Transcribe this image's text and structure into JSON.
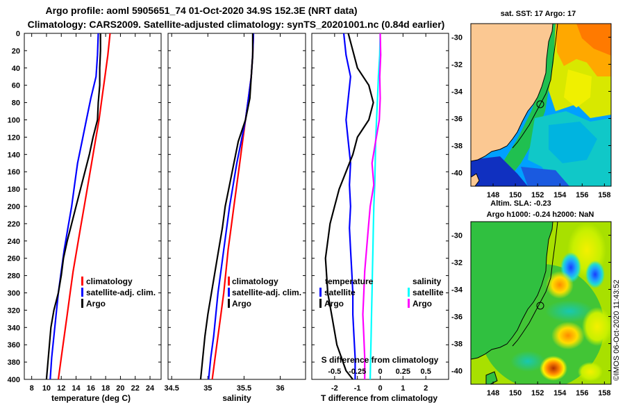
{
  "header": {
    "line1": "Argo profile: aoml 5905651_74 01-Oct-2020 34.9S 152.3E (NRT data)",
    "line2": "Climatology: CARS2009. Satellite-adjusted climatology: synTS_20201001.nc (0.84d earlier)"
  },
  "colors": {
    "red": "#ff0000",
    "blue": "#0000ff",
    "black": "#000000",
    "cyan": "#00ffff",
    "magenta": "#ff00ff"
  },
  "chart_data": [
    {
      "type": "line",
      "id": "temperature",
      "xlabel": "temperature (deg C)",
      "ylabel": "",
      "xlim": [
        7,
        25.5
      ],
      "ylim": [
        400,
        0
      ],
      "xticks": [
        8,
        10,
        12,
        14,
        16,
        18,
        20,
        22,
        24
      ],
      "yticks": [
        0,
        20,
        40,
        60,
        80,
        100,
        120,
        140,
        160,
        180,
        200,
        220,
        240,
        260,
        280,
        300,
        320,
        340,
        360,
        380,
        400
      ],
      "legend": [
        "climatology",
        "satellite-adj. clim.",
        "Argo"
      ],
      "series": [
        {
          "name": "climatology",
          "color": "#ff0000",
          "x": [
            18.6,
            18.3,
            17.9,
            17.5,
            17.1,
            16.6,
            16.1,
            15.6,
            15.1,
            14.6,
            14.1,
            13.6,
            13.2,
            12.8,
            12.4,
            12.0,
            11.6
          ],
          "y": [
            0,
            25,
            50,
            75,
            100,
            125,
            150,
            175,
            200,
            225,
            250,
            275,
            300,
            325,
            350,
            375,
            400
          ]
        },
        {
          "name": "satellite-adj. clim.",
          "color": "#0000ff",
          "x": [
            17.0,
            16.9,
            16.7,
            16.0,
            15.4,
            14.8,
            14.2,
            13.8,
            13.4,
            12.9,
            12.4,
            12.0,
            11.6,
            11.3,
            11.0,
            10.7,
            10.5
          ],
          "y": [
            0,
            25,
            50,
            75,
            100,
            125,
            150,
            175,
            200,
            225,
            250,
            275,
            300,
            325,
            350,
            375,
            400
          ]
        },
        {
          "name": "Argo",
          "color": "#000000",
          "x": [
            17.3,
            17.3,
            17.2,
            17.2,
            17.0,
            16.9,
            16.3,
            15.8,
            15.2,
            14.6,
            14.0,
            13.4,
            12.8,
            12.3,
            12.0,
            11.6,
            11.0,
            10.6,
            10.3,
            10.0
          ],
          "y": [
            0,
            20,
            40,
            60,
            80,
            100,
            120,
            140,
            160,
            180,
            200,
            220,
            240,
            260,
            280,
            300,
            320,
            340,
            370,
            400
          ]
        }
      ]
    },
    {
      "type": "line",
      "id": "salinity",
      "xlabel": "salinity",
      "ylabel": "",
      "xlim": [
        34.45,
        36.35
      ],
      "ylim": [
        400,
        0
      ],
      "xticks": [
        34.5,
        35,
        35.5,
        36
      ],
      "xticklabels": [
        "34.5",
        "35",
        "35.5",
        "36"
      ],
      "legend": [
        "climatology",
        "satellite-adj. clim.",
        "Argo"
      ],
      "series": [
        {
          "name": "climatology",
          "color": "#ff0000",
          "x": [
            35.63,
            35.62,
            35.6,
            35.56,
            35.52,
            35.48,
            35.44,
            35.4,
            35.36,
            35.32,
            35.28,
            35.25,
            35.22,
            35.18,
            35.14,
            35.1,
            35.06
          ],
          "y": [
            0,
            25,
            50,
            75,
            100,
            125,
            150,
            175,
            200,
            225,
            250,
            275,
            300,
            325,
            350,
            375,
            400
          ]
        },
        {
          "name": "satellite-adj. clim.",
          "color": "#0000ff",
          "x": [
            35.63,
            35.62,
            35.6,
            35.56,
            35.52,
            35.46,
            35.4,
            35.35,
            35.3,
            35.26,
            35.22,
            35.18,
            35.14,
            35.11,
            35.08,
            35.04,
            35.01
          ],
          "y": [
            0,
            25,
            50,
            75,
            100,
            125,
            150,
            175,
            200,
            225,
            250,
            275,
            300,
            325,
            350,
            375,
            400
          ]
        },
        {
          "name": "Argo",
          "color": "#000000",
          "x": [
            35.62,
            35.62,
            35.6,
            35.58,
            35.52,
            35.42,
            35.36,
            35.3,
            35.24,
            35.2,
            35.15,
            35.1,
            35.05,
            35.0,
            34.96,
            34.93,
            34.9
          ],
          "y": [
            0,
            25,
            50,
            75,
            100,
            125,
            150,
            175,
            200,
            225,
            250,
            275,
            300,
            325,
            350,
            375,
            400
          ]
        }
      ]
    },
    {
      "type": "line",
      "id": "difference",
      "xlabel": "T difference from climatology",
      "xlabel_top": "S difference from climatology",
      "xlim": [
        -3.0,
        3.0
      ],
      "ylim": [
        400,
        0
      ],
      "xticks": [
        -2,
        -1,
        0,
        1,
        2
      ],
      "xticks_s": [
        "-0.5",
        "-0.25",
        "0",
        "0.25",
        "0.5"
      ],
      "legend_left_title": "temperature",
      "legend_right_title": "salinity",
      "legend_left": [
        "satellite",
        "Argo"
      ],
      "legend_right": [
        "satellite",
        "Argo"
      ],
      "series": [
        {
          "name": "temperature satellite",
          "color": "#0000ff",
          "x": [
            -1.6,
            -1.5,
            -1.3,
            -1.4,
            -1.5,
            -1.4,
            -1.3,
            -1.35,
            -1.3,
            -1.35,
            -1.3,
            -1.25,
            -1.2,
            -1.2,
            -1.15,
            -1.1,
            -1.1
          ],
          "y": [
            0,
            25,
            50,
            75,
            100,
            125,
            150,
            175,
            200,
            225,
            250,
            275,
            300,
            325,
            350,
            375,
            400
          ]
        },
        {
          "name": "temperature Argo",
          "color": "#000000",
          "x": [
            -1.4,
            -1.2,
            -1.0,
            -0.5,
            -0.3,
            -0.5,
            -1.0,
            -1.2,
            -1.5,
            -1.8,
            -2.0,
            -2.2,
            -2.4,
            -2.3,
            -2.1,
            -1.9,
            -1.5,
            -1.2
          ],
          "y": [
            0,
            20,
            40,
            60,
            80,
            100,
            120,
            140,
            160,
            180,
            200,
            220,
            260,
            300,
            330,
            360,
            390,
            400
          ]
        },
        {
          "name": "salinity satellite",
          "color": "#00ffff",
          "x": [
            0,
            -0.005,
            -0.02,
            -0.03,
            -0.04,
            -0.05,
            -0.055,
            -0.06,
            -0.07,
            -0.075,
            -0.08,
            -0.085,
            -0.09,
            -0.095,
            -0.1,
            -0.105,
            -0.11
          ],
          "y": [
            0,
            25,
            50,
            75,
            100,
            125,
            150,
            175,
            200,
            225,
            250,
            275,
            300,
            325,
            350,
            375,
            400
          ]
        },
        {
          "name": "salinity Argo",
          "color": "#ff00ff",
          "x": [
            0.0,
            0.005,
            -0.005,
            0.0,
            -0.01,
            -0.05,
            -0.09,
            -0.07,
            -0.11,
            -0.13,
            -0.15,
            -0.17,
            -0.18,
            -0.19,
            -0.18,
            -0.17,
            -0.17
          ],
          "y": [
            0,
            25,
            50,
            75,
            100,
            125,
            150,
            175,
            200,
            225,
            250,
            275,
            300,
            325,
            350,
            375,
            400
          ]
        }
      ]
    },
    {
      "type": "heatmap",
      "id": "sst_map",
      "title": "sat. SST: 17 Argo: 17",
      "xlim": [
        146,
        158.6
      ],
      "ylim": [
        -41,
        -29
      ],
      "xticks": [
        148,
        150,
        152,
        154,
        156,
        158
      ],
      "yticks": [
        "-30",
        "-32",
        "-34",
        "-36",
        "-38",
        "-40"
      ],
      "marker": {
        "lon": 152.3,
        "lat": -34.9
      }
    },
    {
      "type": "heatmap",
      "id": "sla_map",
      "title_line1": "Altim. SLA: -0.23",
      "title_line2": "Argo h1000: -0.24 h2000: NaN",
      "xlim": [
        146,
        158.6
      ],
      "ylim": [
        -41,
        -29
      ],
      "xticks": [
        148,
        150,
        152,
        154,
        156,
        158
      ],
      "yticks": [
        "-30",
        "-32",
        "-34",
        "-36",
        "-38",
        "-40"
      ],
      "marker": {
        "lon": 152.3,
        "lat": -34.9
      }
    }
  ],
  "footer": {
    "credit": "©IMOS 06-Oct-2020 11:43:52"
  }
}
